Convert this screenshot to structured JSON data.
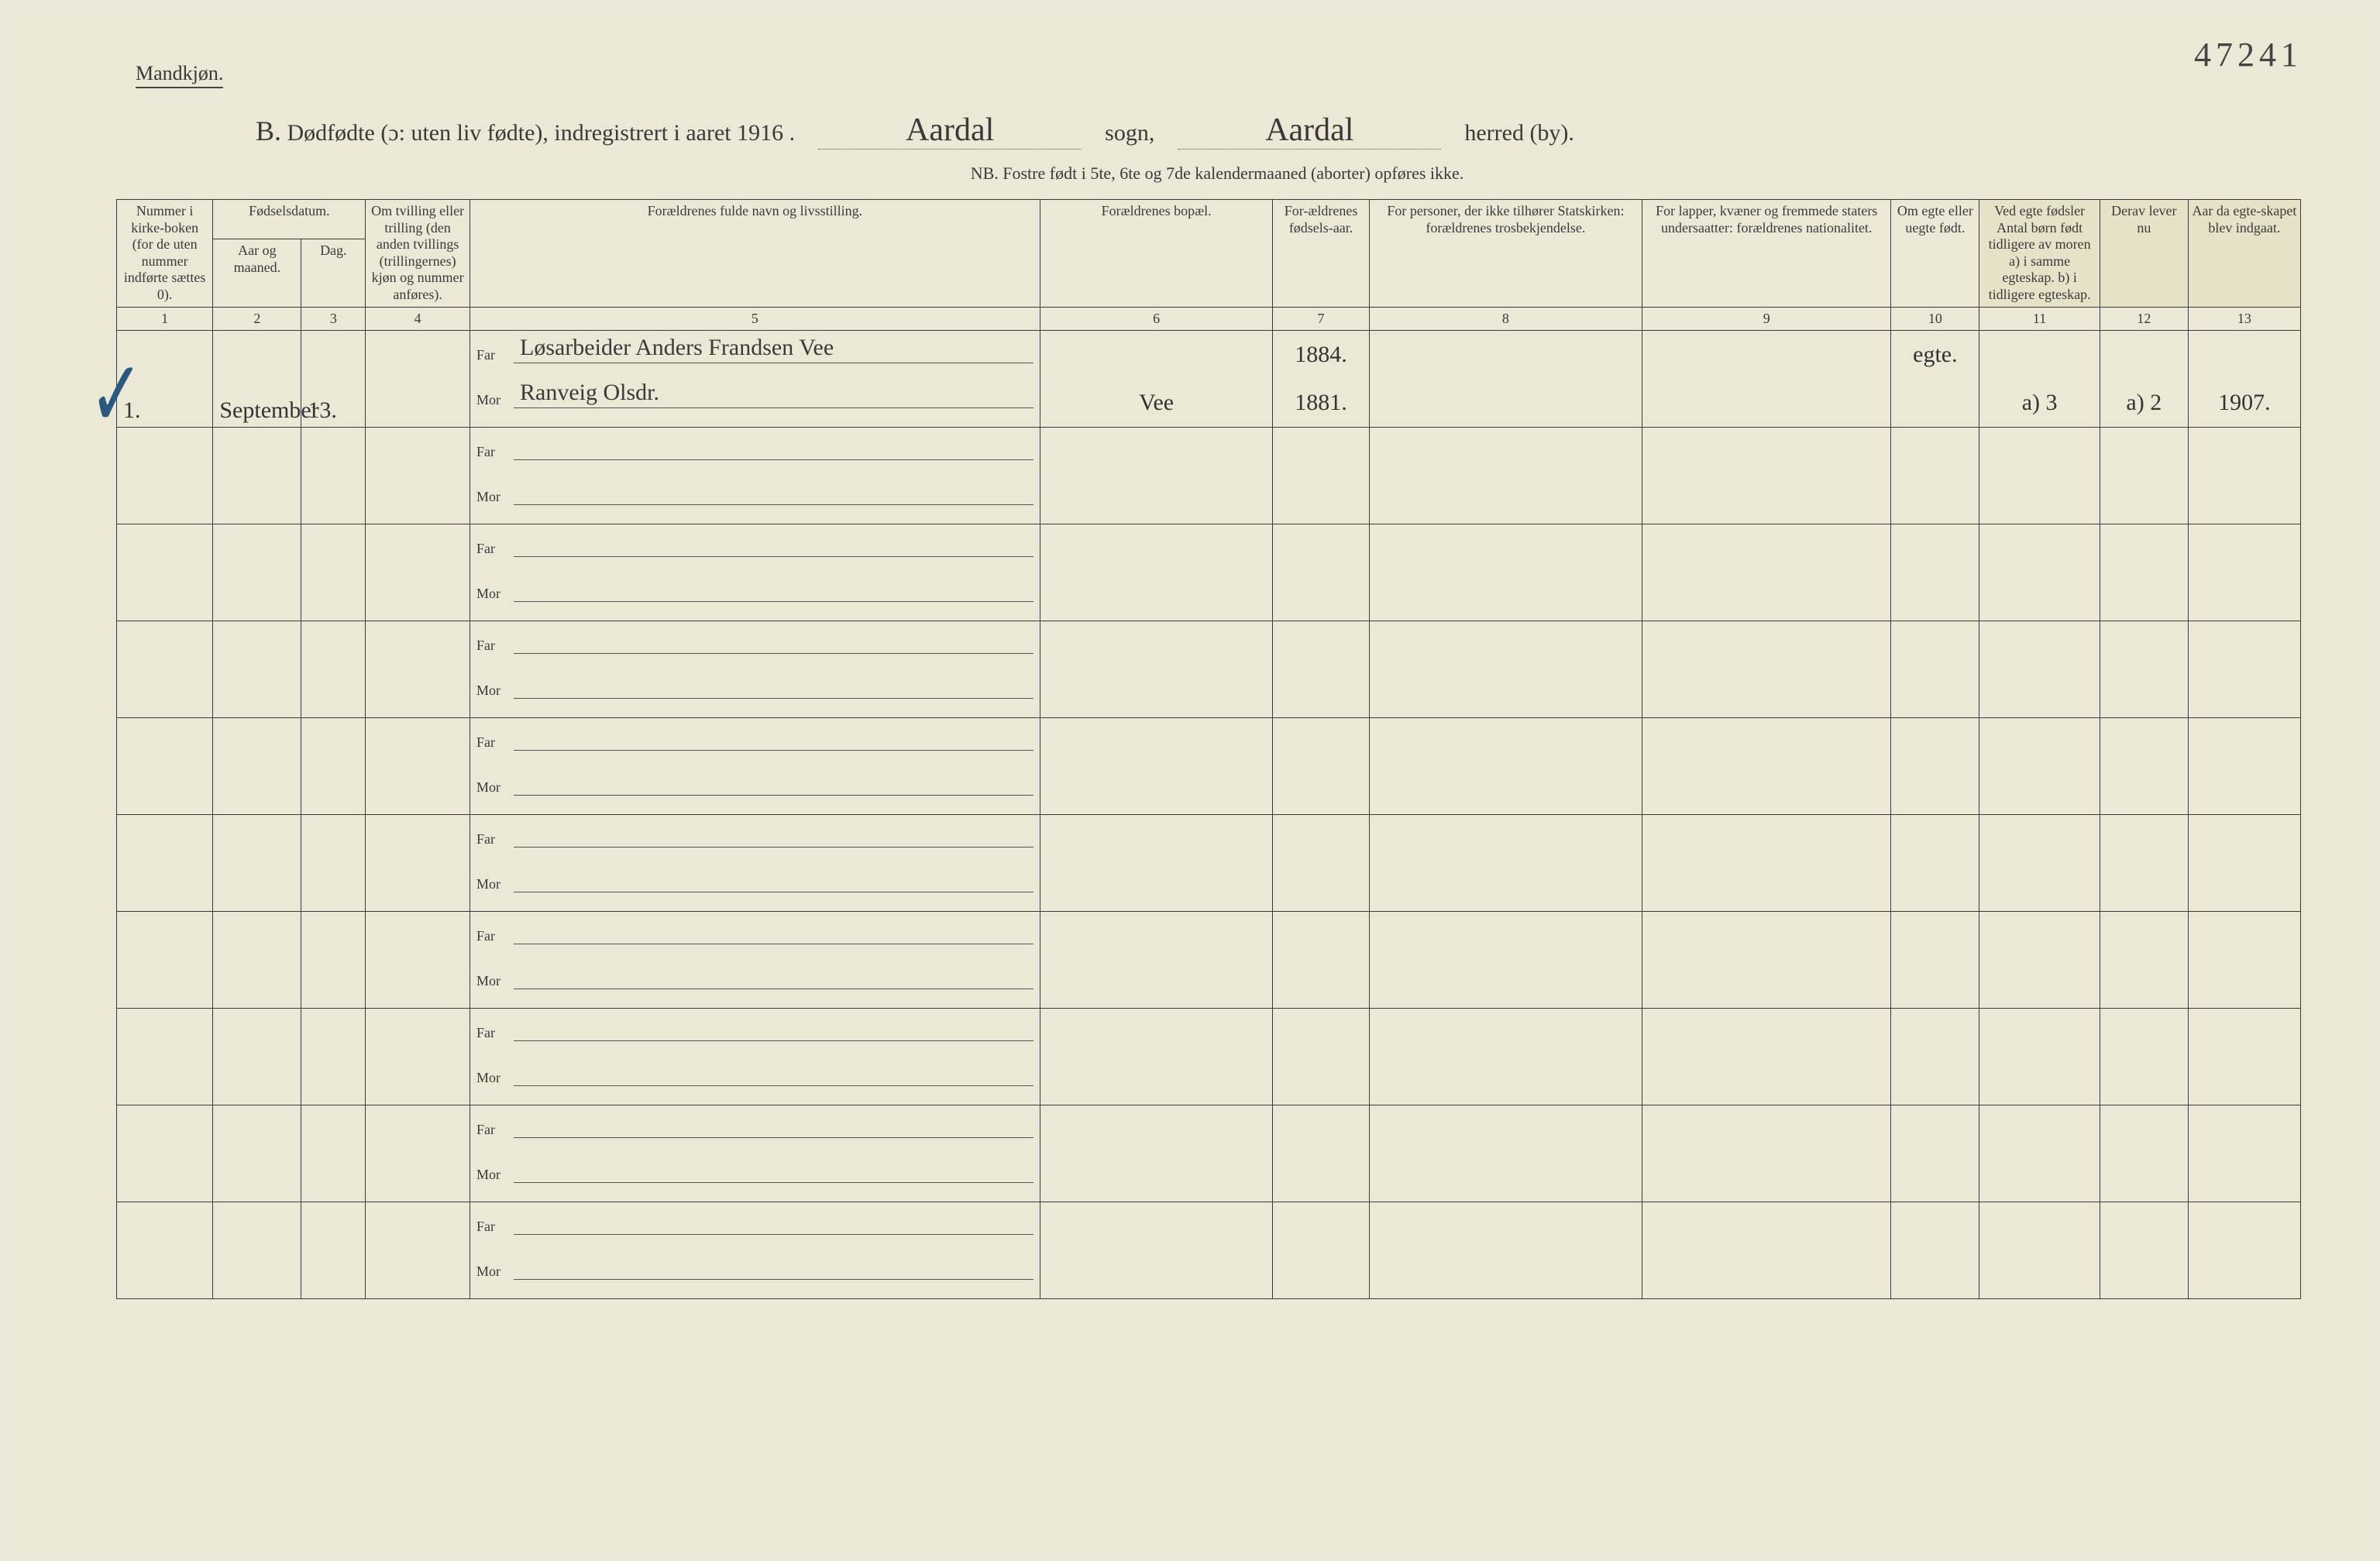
{
  "page_number_handwritten": "47241",
  "gender_heading": "Mandkjøn.",
  "title": {
    "prefix_B": "B.",
    "printed_1": "Dødfødte (ɔ: uten liv fødte), indregistrert i aaret 191",
    "year_suffix": "6 .",
    "sogn_hand": "Aardal",
    "word_sogn": "sogn,",
    "herred_hand": "Aardal",
    "word_herred": "herred (by)."
  },
  "subnote": "NB.  Fostre født i 5te, 6te og 7de kalendermaaned (aborter) opføres ikke.",
  "columns": {
    "c1": "Nummer i kirke-boken (for de uten nummer indførte sættes 0).",
    "c2_group": "Fødselsdatum.",
    "c2": "Aar og maaned.",
    "c3": "Dag.",
    "c4": "Om tvilling eller trilling (den anden tvillings (trillingernes) kjøn og nummer anføres).",
    "c5": "Forældrenes fulde navn og livsstilling.",
    "c6": "Forældrenes bopæl.",
    "c7": "For-ældrenes fødsels-aar.",
    "c8": "For personer, der ikke tilhører Statskirken: forældrenes trosbekjendelse.",
    "c9": "For lapper, kvæner og fremmede staters undersaatter: forældrenes nationalitet.",
    "c10": "Om egte eller uegte født.",
    "c11_patch": "Ved egte fødsler Antal børn født tidligere av moren a) i samme egteskap. b) i tidligere egteskap.",
    "c12_patch": "Derav lever nu",
    "c13_patch": "Aar da egte-skapet blev indgaat."
  },
  "colnums": [
    "1",
    "2",
    "3",
    "4",
    "5",
    "6",
    "7",
    "8",
    "9",
    "10",
    "11",
    "12",
    "13"
  ],
  "far_label": "Far",
  "mor_label": "Mor",
  "entry": {
    "num": "1.",
    "month": "September",
    "day": "13.",
    "far_name": "Løsarbeider Anders Frandsen Vee",
    "mor_name": "Ranveig Olsdr.",
    "bopael": "Vee",
    "far_year": "1884.",
    "mor_year": "1881.",
    "egte": "egte.",
    "col11": "a) 3",
    "col12": "a) 2",
    "col13": "1907."
  },
  "checkmark": "✓",
  "styles": {
    "bg": "#ebe8d6",
    "ink": "#3a3a3a",
    "hand_ink": "#333333",
    "check_color": "#2a5a80",
    "border": "#3a3a3a"
  }
}
